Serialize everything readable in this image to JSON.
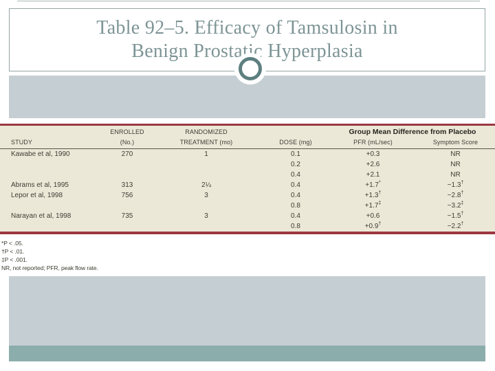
{
  "slide": {
    "title_line1": "Table 92–5. Efficacy of Tamsulosin in",
    "title_line2": "Benign Prostatic Hyperplasia"
  },
  "table": {
    "group_header": "Group Mean Difference from Placebo",
    "header_row1": {
      "enrolled": "ENROLLED",
      "randomized": "RANDOMIZED"
    },
    "header_row2": {
      "study": "STUDY",
      "no": "(No.)",
      "treatment": "TREATMENT (mo)",
      "dose": "DOSE (mg)",
      "pfr": "PFR (mL/sec)",
      "symptom": "Symptom Score"
    },
    "rows": [
      [
        "Kawabe et al, 1990",
        "270",
        "1",
        "0.1",
        "+0.3",
        "NR"
      ],
      [
        "",
        "",
        "",
        "0.2",
        "+2.6",
        "NR"
      ],
      [
        "",
        "",
        "",
        "0.4",
        "+2.1",
        "NR"
      ],
      [
        "Abrams et al, 1995",
        "313",
        "2¼",
        "0.4",
        "+1.7*",
        "−1.3†"
      ],
      [
        "Lepor et al, 1998",
        "756",
        "3",
        "0.4",
        "+1.3†",
        "−2.8†"
      ],
      [
        "",
        "",
        "",
        "0.8",
        "+1.7‡",
        "−3.2‡"
      ],
      [
        "Narayan et al, 1998",
        "735",
        "3",
        "0.4",
        "+0.6",
        "−1.5†"
      ],
      [
        "",
        "",
        "",
        "0.8",
        "+0.9†",
        "−2.2†"
      ]
    ],
    "footnotes": [
      "*P < .05.",
      "†P < .01.",
      "‡P < .001.",
      "NR, not reported; PFR, peak flow rate."
    ]
  },
  "colors": {
    "title_text": "#7d9495",
    "box_border": "#94a4a4",
    "band_light": "#c5ced3",
    "band_dark": "#8badab",
    "circle_ring": "#5d7f80",
    "table_background": "#ece8d8",
    "table_rule_red": "#9c3840",
    "table_text": "#3c3c32"
  }
}
